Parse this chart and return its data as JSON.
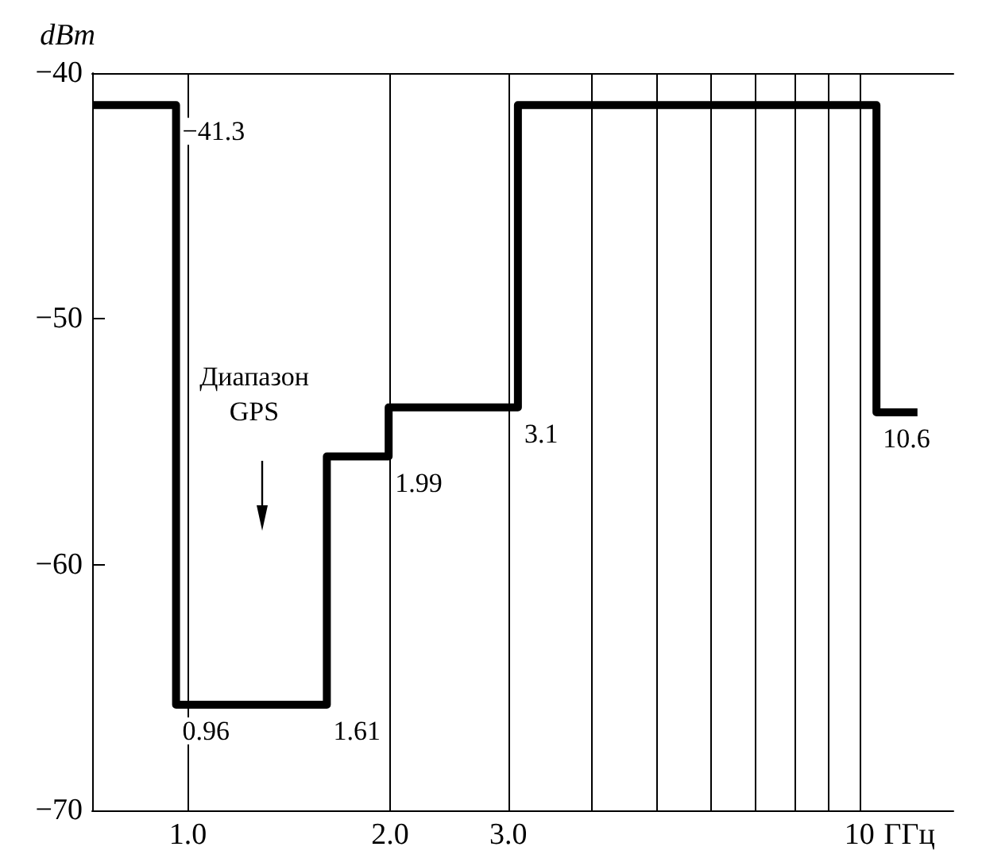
{
  "chart_data": {
    "type": "step",
    "xlabel": "ГГц",
    "ylabel": "dBm",
    "series": [
      {
        "color": "#000000",
        "x": [
          0.72,
          0.96,
          1.61,
          1.99,
          3.1,
          10.6,
          12.2
        ],
        "values": [
          -41.3,
          -65.7,
          -55.6,
          -53.6,
          -41.3,
          -53.8,
          -53.8
        ]
      }
    ],
    "log": "x",
    "xlim": [
      0.72,
      13.8
    ],
    "xticks": [
      {
        "value": 1,
        "label": "1.0"
      },
      {
        "value": 2,
        "label": "2.0"
      },
      {
        "value": 3,
        "label": "3.0"
      },
      {
        "value": 4,
        "label": null
      },
      {
        "value": 5,
        "label": null
      },
      {
        "value": 6,
        "label": null
      },
      {
        "value": 7,
        "label": null
      },
      {
        "value": 8,
        "label": null
      },
      {
        "value": 9,
        "label": null
      },
      10
    ],
    "ylim": [
      -70,
      -40
    ],
    "yticks": [
      -70,
      -60,
      -50,
      -40
    ],
    "grid": "x",
    "marker": "none",
    "line_style": "solid",
    "annotations": [
      {
        "text": "−41.3",
        "x": 0.96,
        "y": -41.3
      },
      {
        "text": "0.96",
        "x": 0.96,
        "y": -65.7
      },
      {
        "text": "1.61",
        "x": 1.61,
        "y": -65.7
      },
      {
        "text": "1.99",
        "x": 1.99,
        "y": -55.6
      },
      {
        "text": "3.1",
        "x": 3.1,
        "y": -53.6
      },
      {
        "text": "10.6",
        "x": 10.6,
        "y": -53.8
      },
      "Диапазон GPS"
    ]
  }
}
